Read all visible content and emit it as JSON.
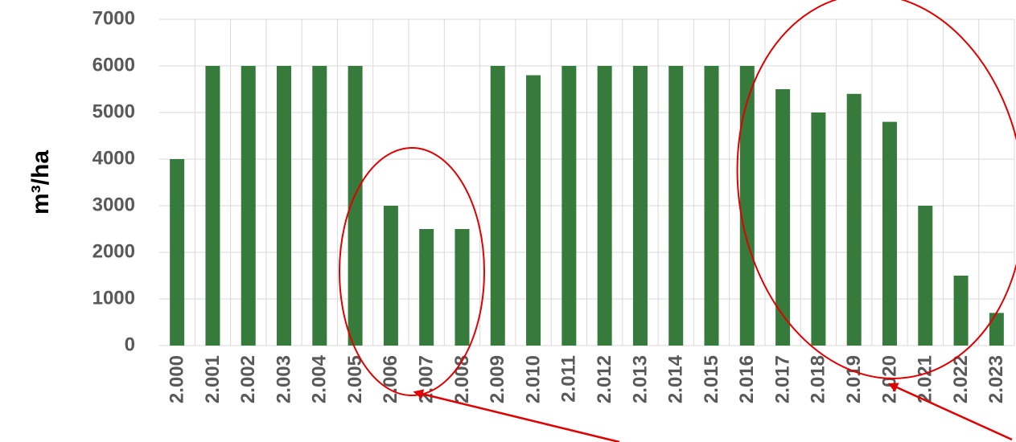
{
  "chart_data": {
    "type": "bar",
    "y_label": "m³/ha",
    "categories": [
      "2.000",
      "2.001",
      "2.002",
      "2.003",
      "2.004",
      "2.005",
      "2.006",
      "2.007",
      "2.008",
      "2.009",
      "2.010",
      "2.011",
      "2.012",
      "2.013",
      "2.014",
      "2.015",
      "2.016",
      "2.017",
      "2.018",
      "2.019",
      "2.020",
      "2.021",
      "2.022",
      "2.023"
    ],
    "values": [
      4000,
      6000,
      6000,
      6000,
      6000,
      6000,
      3000,
      2500,
      2500,
      6000,
      5800,
      6000,
      6000,
      6000,
      6000,
      6000,
      6000,
      5500,
      5000,
      5400,
      4800,
      3000,
      1500,
      700
    ],
    "color": "#367a3c",
    "ylim": [
      0,
      7000
    ],
    "yticks": [
      0,
      1000,
      2000,
      3000,
      4000,
      5000,
      6000,
      7000
    ],
    "grid": true
  }
}
